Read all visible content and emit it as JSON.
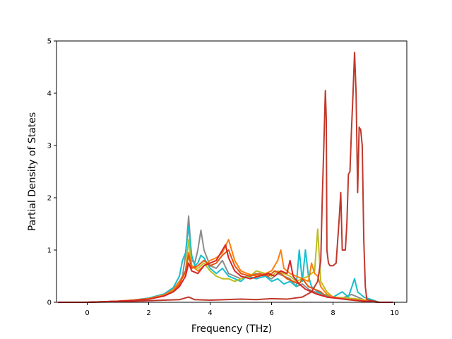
{
  "chart_data": {
    "type": "line",
    "xlabel": "Frequency (THz)",
    "ylabel": "Partial Density of States",
    "xlim": [
      -1.0,
      10.4
    ],
    "ylim": [
      0,
      5
    ],
    "xticks": [
      "0",
      "2",
      "4",
      "6",
      "8",
      "10"
    ],
    "yticks": [
      "0",
      "1",
      "2",
      "3",
      "4",
      "5"
    ],
    "grid": false,
    "series": [
      {
        "color": "#8c8c8c",
        "points": [
          [
            -0.95,
            0
          ],
          [
            0,
            0
          ],
          [
            0.5,
            0.01
          ],
          [
            1,
            0.02
          ],
          [
            1.5,
            0.04
          ],
          [
            2,
            0.08
          ],
          [
            2.5,
            0.15
          ],
          [
            2.8,
            0.25
          ],
          [
            3.0,
            0.4
          ],
          [
            3.1,
            0.5
          ],
          [
            3.2,
            0.9
          ],
          [
            3.3,
            1.65
          ],
          [
            3.4,
            0.8
          ],
          [
            3.5,
            0.75
          ],
          [
            3.6,
            1.0
          ],
          [
            3.7,
            1.38
          ],
          [
            3.8,
            1.0
          ],
          [
            3.9,
            0.85
          ],
          [
            4.0,
            0.7
          ],
          [
            4.2,
            0.65
          ],
          [
            4.4,
            0.8
          ],
          [
            4.6,
            0.55
          ],
          [
            4.8,
            0.5
          ],
          [
            5.0,
            0.45
          ],
          [
            5.2,
            0.5
          ],
          [
            5.5,
            0.55
          ],
          [
            5.8,
            0.5
          ],
          [
            6.0,
            0.45
          ],
          [
            6.2,
            0.55
          ],
          [
            6.4,
            0.5
          ],
          [
            6.6,
            0.45
          ],
          [
            6.8,
            0.3
          ],
          [
            7.0,
            0.35
          ],
          [
            7.2,
            0.25
          ],
          [
            7.4,
            0.2
          ],
          [
            7.6,
            0.15
          ],
          [
            7.8,
            0.12
          ],
          [
            8.0,
            0.1
          ],
          [
            8.3,
            0.08
          ],
          [
            8.6,
            0.15
          ],
          [
            8.8,
            0.1
          ],
          [
            9.0,
            0.05
          ],
          [
            9.5,
            0
          ],
          [
            9.95,
            0
          ]
        ]
      },
      {
        "color": "#17becf",
        "points": [
          [
            -0.95,
            0
          ],
          [
            0,
            0
          ],
          [
            0.5,
            0.01
          ],
          [
            1,
            0.02
          ],
          [
            1.5,
            0.04
          ],
          [
            2,
            0.08
          ],
          [
            2.5,
            0.16
          ],
          [
            2.8,
            0.28
          ],
          [
            3.0,
            0.5
          ],
          [
            3.1,
            0.8
          ],
          [
            3.2,
            0.95
          ],
          [
            3.3,
            1.45
          ],
          [
            3.4,
            0.9
          ],
          [
            3.5,
            0.7
          ],
          [
            3.6,
            0.75
          ],
          [
            3.7,
            0.9
          ],
          [
            3.8,
            0.85
          ],
          [
            4.0,
            0.65
          ],
          [
            4.2,
            0.55
          ],
          [
            4.4,
            0.65
          ],
          [
            4.6,
            0.5
          ],
          [
            4.8,
            0.45
          ],
          [
            5.0,
            0.4
          ],
          [
            5.2,
            0.5
          ],
          [
            5.5,
            0.45
          ],
          [
            5.8,
            0.5
          ],
          [
            6.0,
            0.4
          ],
          [
            6.2,
            0.45
          ],
          [
            6.4,
            0.35
          ],
          [
            6.6,
            0.4
          ],
          [
            6.8,
            0.3
          ],
          [
            6.9,
            1.0
          ],
          [
            7.0,
            0.4
          ],
          [
            7.1,
            1.0
          ],
          [
            7.2,
            0.5
          ],
          [
            7.3,
            0.3
          ],
          [
            7.5,
            0.2
          ],
          [
            7.7,
            0.15
          ],
          [
            8.0,
            0.1
          ],
          [
            8.3,
            0.2
          ],
          [
            8.5,
            0.1
          ],
          [
            8.7,
            0.45
          ],
          [
            8.8,
            0.2
          ],
          [
            9.0,
            0.1
          ],
          [
            9.5,
            0
          ],
          [
            9.95,
            0
          ]
        ]
      },
      {
        "color": "#bcbd22",
        "points": [
          [
            -0.95,
            0
          ],
          [
            0,
            0
          ],
          [
            0.5,
            0.01
          ],
          [
            1,
            0.02
          ],
          [
            1.5,
            0.04
          ],
          [
            2,
            0.07
          ],
          [
            2.5,
            0.13
          ],
          [
            2.8,
            0.22
          ],
          [
            3.0,
            0.35
          ],
          [
            3.2,
            0.6
          ],
          [
            3.3,
            1.2
          ],
          [
            3.4,
            0.7
          ],
          [
            3.6,
            0.65
          ],
          [
            3.8,
            0.75
          ],
          [
            4.0,
            0.6
          ],
          [
            4.2,
            0.5
          ],
          [
            4.4,
            0.45
          ],
          [
            4.6,
            0.45
          ],
          [
            4.8,
            0.4
          ],
          [
            5.0,
            0.45
          ],
          [
            5.3,
            0.5
          ],
          [
            5.5,
            0.6
          ],
          [
            5.8,
            0.55
          ],
          [
            6.0,
            0.5
          ],
          [
            6.2,
            0.6
          ],
          [
            6.4,
            0.55
          ],
          [
            6.6,
            0.5
          ],
          [
            6.8,
            0.4
          ],
          [
            7.0,
            0.45
          ],
          [
            7.2,
            0.5
          ],
          [
            7.4,
            0.6
          ],
          [
            7.5,
            1.4
          ],
          [
            7.6,
            0.4
          ],
          [
            7.8,
            0.2
          ],
          [
            8.0,
            0.1
          ],
          [
            8.5,
            0.08
          ],
          [
            9.0,
            0.05
          ],
          [
            9.5,
            0
          ],
          [
            9.95,
            0
          ]
        ]
      },
      {
        "color": "#ff7f0e",
        "points": [
          [
            -0.95,
            0
          ],
          [
            0,
            0
          ],
          [
            0.5,
            0.01
          ],
          [
            1,
            0.02
          ],
          [
            1.5,
            0.04
          ],
          [
            2,
            0.07
          ],
          [
            2.5,
            0.14
          ],
          [
            2.8,
            0.24
          ],
          [
            3.0,
            0.4
          ],
          [
            3.2,
            0.55
          ],
          [
            3.3,
            0.95
          ],
          [
            3.4,
            0.7
          ],
          [
            3.6,
            0.6
          ],
          [
            3.8,
            0.7
          ],
          [
            4.0,
            0.8
          ],
          [
            4.2,
            0.85
          ],
          [
            4.4,
            0.95
          ],
          [
            4.6,
            1.2
          ],
          [
            4.8,
            0.8
          ],
          [
            5.0,
            0.6
          ],
          [
            5.2,
            0.55
          ],
          [
            5.5,
            0.5
          ],
          [
            5.8,
            0.55
          ],
          [
            6.0,
            0.6
          ],
          [
            6.2,
            0.8
          ],
          [
            6.3,
            1.0
          ],
          [
            6.4,
            0.65
          ],
          [
            6.6,
            0.55
          ],
          [
            6.8,
            0.5
          ],
          [
            7.0,
            0.45
          ],
          [
            7.2,
            0.4
          ],
          [
            7.3,
            0.75
          ],
          [
            7.4,
            0.55
          ],
          [
            7.5,
            0.5
          ],
          [
            7.6,
            0.3
          ],
          [
            7.8,
            0.15
          ],
          [
            8.0,
            0.1
          ],
          [
            8.5,
            0.05
          ],
          [
            9.0,
            0.03
          ],
          [
            9.5,
            0
          ],
          [
            9.95,
            0
          ]
        ]
      },
      {
        "color": "#e6550d",
        "points": [
          [
            -0.95,
            0
          ],
          [
            0,
            0
          ],
          [
            0.5,
            0.01
          ],
          [
            1,
            0.02
          ],
          [
            1.5,
            0.04
          ],
          [
            2,
            0.06
          ],
          [
            2.5,
            0.12
          ],
          [
            2.8,
            0.2
          ],
          [
            3.0,
            0.35
          ],
          [
            3.2,
            0.6
          ],
          [
            3.3,
            0.9
          ],
          [
            3.4,
            0.65
          ],
          [
            3.6,
            0.7
          ],
          [
            3.8,
            0.8
          ],
          [
            4.0,
            0.7
          ],
          [
            4.2,
            0.75
          ],
          [
            4.4,
            0.9
          ],
          [
            4.6,
            1.0
          ],
          [
            4.8,
            0.7
          ],
          [
            5.0,
            0.55
          ],
          [
            5.3,
            0.5
          ],
          [
            5.6,
            0.55
          ],
          [
            5.9,
            0.5
          ],
          [
            6.1,
            0.6
          ],
          [
            6.3,
            0.55
          ],
          [
            6.5,
            0.45
          ],
          [
            6.7,
            0.4
          ],
          [
            6.9,
            0.35
          ],
          [
            7.0,
            0.45
          ],
          [
            7.2,
            0.3
          ],
          [
            7.4,
            0.25
          ],
          [
            7.6,
            0.2
          ],
          [
            7.8,
            0.1
          ],
          [
            8.5,
            0.05
          ],
          [
            9.0,
            0.02
          ],
          [
            9.5,
            0
          ],
          [
            9.95,
            0
          ]
        ]
      },
      {
        "color": "#c0392b",
        "points": [
          [
            -0.95,
            0
          ],
          [
            0,
            0
          ],
          [
            0.5,
            0.005
          ],
          [
            1,
            0.01
          ],
          [
            1.5,
            0.02
          ],
          [
            2,
            0.03
          ],
          [
            2.5,
            0.04
          ],
          [
            3.0,
            0.05
          ],
          [
            3.3,
            0.1
          ],
          [
            3.5,
            0.05
          ],
          [
            4.0,
            0.04
          ],
          [
            4.5,
            0.05
          ],
          [
            5.0,
            0.06
          ],
          [
            5.5,
            0.05
          ],
          [
            6.0,
            0.07
          ],
          [
            6.5,
            0.06
          ],
          [
            7.0,
            0.1
          ],
          [
            7.3,
            0.2
          ],
          [
            7.5,
            0.4
          ],
          [
            7.6,
            0.8
          ],
          [
            7.65,
            2.0
          ],
          [
            7.7,
            3.0
          ],
          [
            7.75,
            4.05
          ],
          [
            7.78,
            3.5
          ],
          [
            7.8,
            1.0
          ],
          [
            7.85,
            0.75
          ],
          [
            7.9,
            0.7
          ],
          [
            8.0,
            0.7
          ],
          [
            8.1,
            0.75
          ],
          [
            8.2,
            1.6
          ],
          [
            8.25,
            2.1
          ],
          [
            8.3,
            1.0
          ],
          [
            8.4,
            1.0
          ],
          [
            8.45,
            1.5
          ],
          [
            8.5,
            2.45
          ],
          [
            8.55,
            2.5
          ],
          [
            8.6,
            3.3
          ],
          [
            8.65,
            4.0
          ],
          [
            8.7,
            4.78
          ],
          [
            8.75,
            4.0
          ],
          [
            8.8,
            2.1
          ],
          [
            8.85,
            3.35
          ],
          [
            8.9,
            3.3
          ],
          [
            8.95,
            3.0
          ],
          [
            9.0,
            1.2
          ],
          [
            9.05,
            0.3
          ],
          [
            9.1,
            0.05
          ],
          [
            9.5,
            0
          ],
          [
            9.95,
            0
          ]
        ]
      },
      {
        "color": "#d62728",
        "points": [
          [
            -0.95,
            0
          ],
          [
            0,
            0
          ],
          [
            0.5,
            0.01
          ],
          [
            1,
            0.02
          ],
          [
            1.5,
            0.03
          ],
          [
            2,
            0.06
          ],
          [
            2.5,
            0.12
          ],
          [
            2.8,
            0.2
          ],
          [
            3.0,
            0.3
          ],
          [
            3.2,
            0.5
          ],
          [
            3.3,
            0.75
          ],
          [
            3.4,
            0.6
          ],
          [
            3.6,
            0.55
          ],
          [
            3.8,
            0.7
          ],
          [
            4.0,
            0.75
          ],
          [
            4.2,
            0.8
          ],
          [
            4.4,
            1.0
          ],
          [
            4.5,
            1.1
          ],
          [
            4.6,
            0.85
          ],
          [
            4.8,
            0.6
          ],
          [
            5.0,
            0.5
          ],
          [
            5.3,
            0.45
          ],
          [
            5.6,
            0.5
          ],
          [
            5.9,
            0.55
          ],
          [
            6.1,
            0.5
          ],
          [
            6.3,
            0.6
          ],
          [
            6.5,
            0.55
          ],
          [
            6.6,
            0.8
          ],
          [
            6.7,
            0.5
          ],
          [
            6.9,
            0.35
          ],
          [
            7.1,
            0.25
          ],
          [
            7.3,
            0.2
          ],
          [
            7.5,
            0.15
          ],
          [
            7.8,
            0.1
          ],
          [
            8.5,
            0.05
          ],
          [
            9.0,
            0.02
          ],
          [
            9.5,
            0
          ],
          [
            9.95,
            0
          ]
        ]
      }
    ]
  }
}
